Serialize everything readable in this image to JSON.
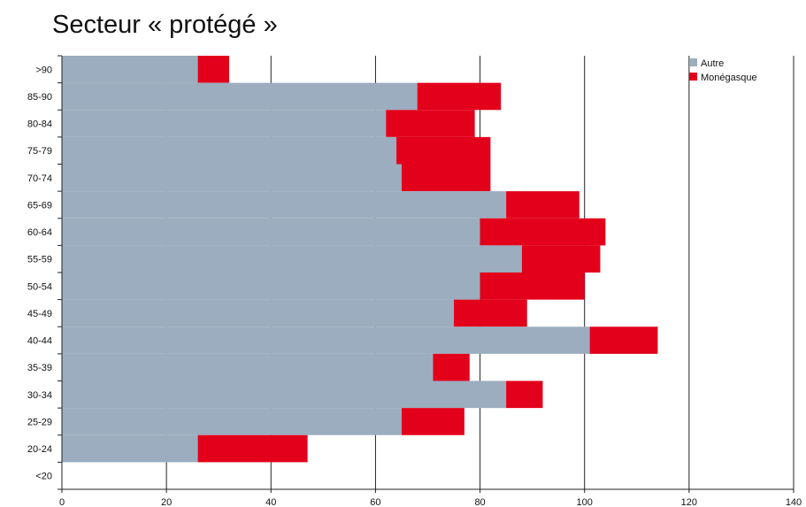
{
  "chart_data": {
    "type": "bar",
    "orientation": "horizontal",
    "stacked": true,
    "title": "Secteur « protégé »",
    "xlabel": "",
    "ylabel": "",
    "xlim": [
      0,
      140
    ],
    "xticks": [
      0,
      20,
      40,
      60,
      80,
      100,
      120,
      140
    ],
    "grid": "vertical",
    "legend_position": "top-right",
    "categories": [
      ">90",
      "85-90",
      "80-84",
      "75-79",
      "70-74",
      "65-69",
      "60-64",
      "55-59",
      "50-54",
      "45-49",
      "40-44",
      "35-39",
      "30-34",
      "25-29",
      "20-24",
      "<20"
    ],
    "series": [
      {
        "name": "Autre",
        "color": "#9badbe",
        "values": [
          26,
          68,
          62,
          64,
          65,
          85,
          80,
          88,
          80,
          75,
          101,
          71,
          85,
          65,
          26,
          0
        ]
      },
      {
        "name": "Monégasque",
        "color": "#e3001b",
        "values": [
          6,
          16,
          17,
          18,
          17,
          14,
          24,
          15,
          20,
          14,
          13,
          7,
          7,
          12,
          21,
          0
        ]
      }
    ]
  }
}
